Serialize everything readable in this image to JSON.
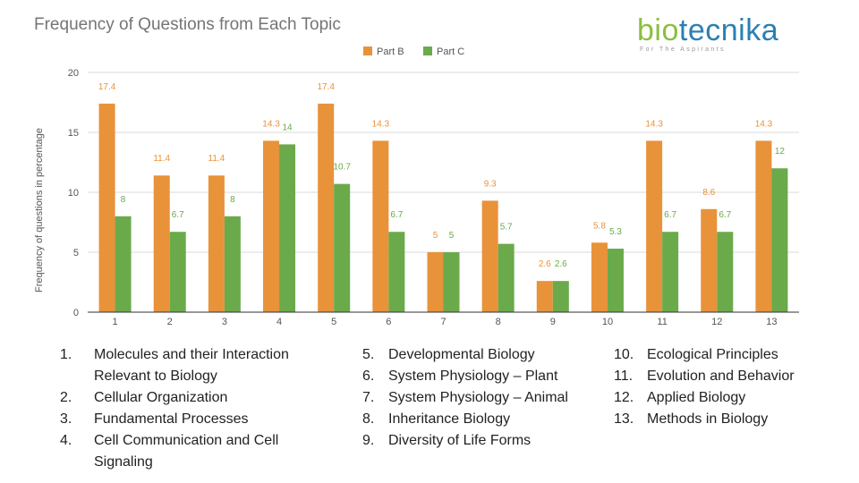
{
  "title": "Frequency of Questions from Each Topic",
  "logo": {
    "text_bio": "bio",
    "text_tec": "tecnika",
    "tagline": "For The Aspirants"
  },
  "colors": {
    "part_b": "#e8923a",
    "part_c": "#6aaa4b",
    "grid": "#d9d9d9",
    "axis_text": "#555555",
    "axis_line": "#333333"
  },
  "chart_data": {
    "type": "bar",
    "ylabel": "Frequency of questions in percentage",
    "xlabel": "",
    "ylim": [
      0,
      20
    ],
    "yticks": [
      0,
      5,
      10,
      15,
      20
    ],
    "grid": true,
    "legend_position": "top",
    "categories": [
      "1",
      "2",
      "3",
      "4",
      "5",
      "6",
      "7",
      "8",
      "9",
      "10",
      "11",
      "12",
      "13"
    ],
    "series": [
      {
        "name": "Part B",
        "values": [
          17.4,
          11.4,
          11.4,
          14.3,
          17.4,
          14.3,
          5,
          9.3,
          2.6,
          5.8,
          14.3,
          8.6,
          14.3
        ]
      },
      {
        "name": "Part C",
        "values": [
          8,
          6.7,
          8,
          14,
          10.7,
          6.7,
          5,
          5.7,
          2.6,
          5.3,
          6.7,
          6.7,
          12
        ]
      }
    ]
  },
  "topics": {
    "col1": [
      {
        "num": "1.",
        "label": "Molecules and their Interaction"
      },
      {
        "num": "",
        "label": "Relevant to Biology"
      },
      {
        "num": "2.",
        "label": "Cellular Organization"
      },
      {
        "num": "3.",
        "label": "Fundamental Processes"
      },
      {
        "num": "4.",
        "label": "Cell Communication and Cell"
      },
      {
        "num": "",
        "label": "Signaling"
      }
    ],
    "col2": [
      {
        "num": "5.",
        "label": "Developmental Biology"
      },
      {
        "num": "6.",
        "label": "System Physiology – Plant"
      },
      {
        "num": "7.",
        "label": "System Physiology – Animal"
      },
      {
        "num": "8.",
        "label": "Inheritance Biology"
      },
      {
        "num": "9.",
        "label": "Diversity of Life Forms"
      }
    ],
    "col3": [
      {
        "num": "10.",
        "label": "Ecological Principles"
      },
      {
        "num": "11.",
        "label": "Evolution and Behavior"
      },
      {
        "num": "12.",
        "label": "Applied Biology"
      },
      {
        "num": "13.",
        "label": "Methods in Biology"
      }
    ]
  }
}
